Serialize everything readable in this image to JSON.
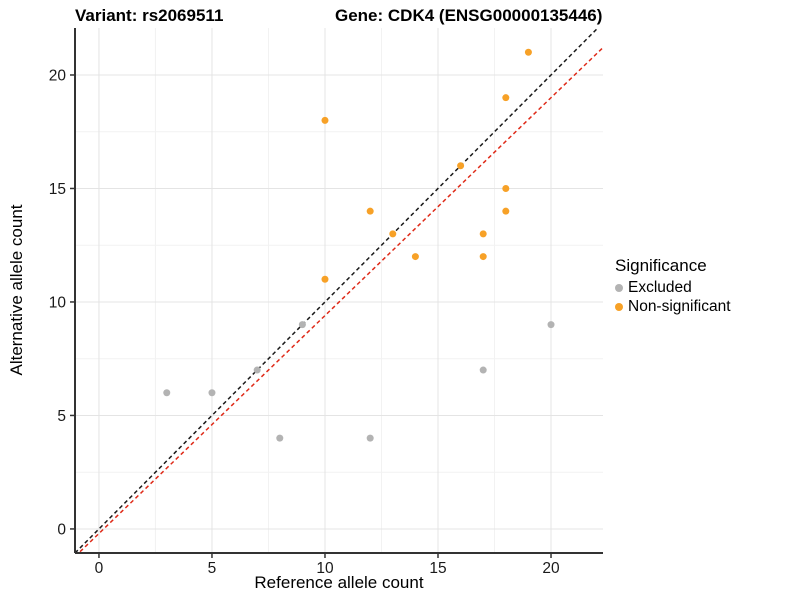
{
  "titles": {
    "variant": "Variant: rs2069511",
    "gene": "Gene: CDK4 (ENSG00000135446)"
  },
  "legend": {
    "title": "Significance",
    "items": [
      {
        "label": "Excluded",
        "color": "#b3b3b3"
      },
      {
        "label": "Non-significant",
        "color": "#f7a127"
      }
    ]
  },
  "chart_data": {
    "type": "scatter",
    "title": "Variant: rs2069511   Gene: CDK4 (ENSG00000135446)",
    "xlabel": "Reference allele count",
    "ylabel": "Alternative allele count",
    "xlim": [
      -1.06,
      22.3
    ],
    "ylim": [
      -1.06,
      22.07
    ],
    "xticks": [
      0,
      5,
      10,
      15,
      20
    ],
    "yticks": [
      0,
      5,
      10,
      15,
      20
    ],
    "x_minor": [
      2.5,
      7.5,
      12.5,
      17.5
    ],
    "y_minor": [
      2.5,
      7.5,
      12.5,
      17.5
    ],
    "grid": {
      "major_color": "#e4e4e4",
      "minor_color": "#f2f2f2",
      "on": true
    },
    "axis_color": "#333333",
    "tick_label_color": "#1a1a1a",
    "legend_position": "right",
    "series": [
      {
        "name": "Excluded",
        "color": "#b3b3b3",
        "points": [
          [
            3,
            6
          ],
          [
            5,
            6
          ],
          [
            7,
            7
          ],
          [
            8,
            4
          ],
          [
            9,
            9
          ],
          [
            12,
            4
          ],
          [
            17,
            7
          ],
          [
            20,
            9
          ]
        ]
      },
      {
        "name": "Non-significant",
        "color": "#f7a127",
        "points": [
          [
            10,
            11
          ],
          [
            10,
            18
          ],
          [
            12,
            14
          ],
          [
            13,
            13
          ],
          [
            14,
            12
          ],
          [
            16,
            16
          ],
          [
            17,
            12
          ],
          [
            17,
            13
          ],
          [
            18,
            14
          ],
          [
            18,
            15
          ],
          [
            18,
            19
          ],
          [
            19,
            21
          ]
        ]
      }
    ],
    "lines": [
      {
        "name": "identity-line",
        "slope": 1,
        "intercept": 0,
        "color": "#1a1a1a",
        "dash": "4,3"
      },
      {
        "name": "fit-line",
        "slope": 0.96,
        "intercept": -0.2,
        "color": "#df2a18",
        "dash": "4,3"
      }
    ]
  }
}
